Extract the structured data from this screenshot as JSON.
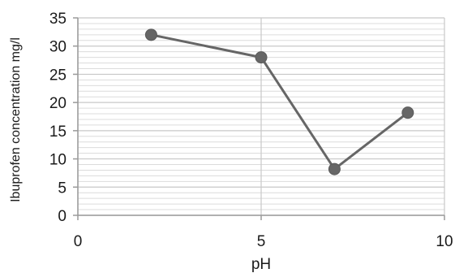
{
  "chart_data": {
    "type": "scatter",
    "title": "",
    "xlabel": "pH",
    "ylabel": "Ibuprofen concentration mg/l",
    "xlim": [
      0,
      10
    ],
    "ylim": [
      0,
      35
    ],
    "xticks": [
      0,
      5,
      10
    ],
    "xtick_labels": [
      "0",
      "5",
      "10"
    ],
    "yticks": [
      0,
      5,
      10,
      15,
      20,
      25,
      30,
      35
    ],
    "ytick_labels": [
      "0",
      "5",
      "10",
      "15",
      "20",
      "25",
      "30",
      "35"
    ],
    "minor_grid_step": 1,
    "grid": true,
    "legend": "none",
    "series": [
      {
        "x": [
          2,
          5,
          7,
          9
        ],
        "y": [
          32,
          28,
          8.2,
          18.2
        ],
        "line": true,
        "markers": true,
        "color": "#666666"
      }
    ]
  }
}
